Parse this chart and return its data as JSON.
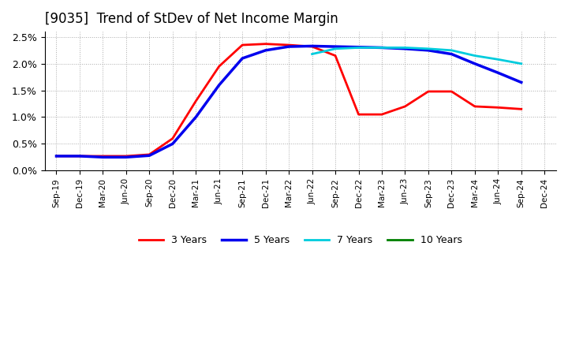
{
  "title": "[9035]  Trend of StDev of Net Income Margin",
  "x_labels": [
    "Sep-19",
    "Dec-19",
    "Mar-20",
    "Jun-20",
    "Sep-20",
    "Dec-20",
    "Mar-21",
    "Jun-21",
    "Sep-21",
    "Dec-21",
    "Mar-22",
    "Jun-22",
    "Sep-22",
    "Dec-22",
    "Mar-23",
    "Jun-23",
    "Sep-23",
    "Dec-23",
    "Mar-24",
    "Jun-24",
    "Sep-24",
    "Dec-24"
  ],
  "series": {
    "3 Years": {
      "color": "#FF0000",
      "linewidth": 2.0,
      "values": [
        0.0027,
        0.0027,
        0.0027,
        0.0027,
        0.003,
        0.006,
        0.013,
        0.0195,
        0.0235,
        0.0237,
        0.0235,
        0.0232,
        0.0215,
        0.0105,
        0.0105,
        0.012,
        0.0148,
        0.0148,
        0.012,
        0.0118,
        0.0115,
        null
      ]
    },
    "5 Years": {
      "color": "#0000EE",
      "linewidth": 2.5,
      "values": [
        0.0027,
        0.0027,
        0.0025,
        0.0025,
        0.0028,
        0.005,
        0.01,
        0.016,
        0.021,
        0.0225,
        0.0232,
        0.0233,
        0.0232,
        0.0231,
        0.023,
        0.0228,
        0.0225,
        0.0218,
        0.02,
        0.0183,
        0.0165,
        null
      ]
    },
    "7 Years": {
      "color": "#00CCDD",
      "linewidth": 2.0,
      "values": [
        null,
        null,
        null,
        null,
        null,
        null,
        null,
        null,
        null,
        null,
        null,
        0.0218,
        0.0228,
        0.023,
        0.023,
        0.023,
        0.0228,
        0.0225,
        0.0215,
        0.0208,
        0.02,
        null
      ]
    },
    "10 Years": {
      "color": "#008000",
      "linewidth": 2.0,
      "values": [
        null,
        null,
        null,
        null,
        null,
        null,
        null,
        null,
        null,
        null,
        null,
        null,
        null,
        null,
        null,
        null,
        null,
        null,
        null,
        null,
        null,
        null
      ]
    }
  },
  "ylim": [
    0.0,
    0.026
  ],
  "yticks": [
    0.0,
    0.005,
    0.01,
    0.015,
    0.02,
    0.025
  ],
  "yticklabels": [
    "0.0%",
    "0.5%",
    "1.0%",
    "1.5%",
    "2.0%",
    "2.5%"
  ],
  "background_color": "#FFFFFF",
  "grid_color": "#AAAAAA",
  "title_fontsize": 12,
  "legend_labels": [
    "3 Years",
    "5 Years",
    "7 Years",
    "10 Years"
  ],
  "legend_colors": [
    "#FF0000",
    "#0000EE",
    "#00CCDD",
    "#008000"
  ]
}
